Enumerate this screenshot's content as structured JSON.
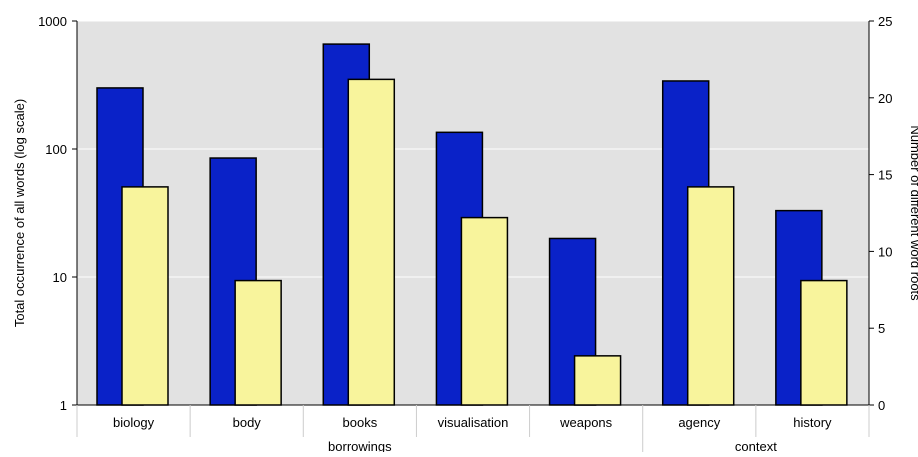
{
  "chart_data": {
    "type": "bar",
    "categories": [
      "biology",
      "body",
      "books",
      "visualisation",
      "weapons",
      "agency",
      "history"
    ],
    "groups": [
      {
        "label": "borrowings",
        "span": [
          0,
          4
        ]
      },
      {
        "label": "context",
        "span": [
          5,
          6
        ]
      }
    ],
    "series": [
      {
        "axis": "left",
        "color": "#0a22c8",
        "values": [
          300,
          85,
          660,
          135,
          20,
          340,
          33
        ]
      },
      {
        "axis": "right",
        "color": "#f8f49c",
        "values": [
          14.2,
          8.1,
          21.2,
          12.2,
          3.2,
          14.2,
          8.1
        ]
      }
    ],
    "ylabel": "Total occurrence of all words (log scale)",
    "y2label": "Number of different word roots",
    "ylim": [
      1,
      1000
    ],
    "yscale": "log",
    "yticks": [
      "1",
      "10",
      "100",
      "1000"
    ],
    "y2lim": [
      0,
      25
    ],
    "y2ticks": [
      "0",
      "5",
      "10",
      "15",
      "20",
      "25"
    ],
    "grid": true,
    "plot_background": "#e2e2e2"
  }
}
